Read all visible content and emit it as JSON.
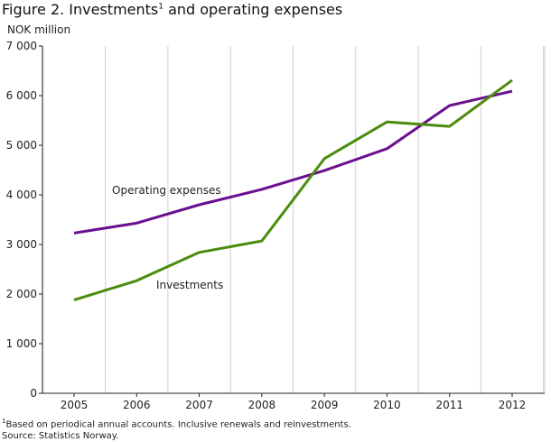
{
  "title_pre": "Figure 2. Investments",
  "title_sup": "1",
  "title_post": " and operating expenses",
  "footnote_mark": "1",
  "footnote": "Based on periodical annual accounts. Inclusive renewals and reinvestments.",
  "source": "Source: Statistics Norway.",
  "chart_data": {
    "type": "line",
    "ylabel": "NOK million",
    "x": [
      2005,
      2006,
      2007,
      2008,
      2009,
      2010,
      2011,
      2012
    ],
    "ylim": [
      0,
      7000
    ],
    "yticks": [
      0,
      1000,
      2000,
      3000,
      4000,
      5000,
      6000,
      7000
    ],
    "ytick_labels": [
      "0",
      "1 000",
      "2 000",
      "3 000",
      "4 000",
      "5 000",
      "6 000",
      "7 000"
    ],
    "grid": "vertical",
    "series": [
      {
        "name": "Operating expenses",
        "color": "#6a0f8e",
        "values": [
          3230,
          3430,
          3800,
          4110,
          4490,
          4930,
          5800,
          6090
        ]
      },
      {
        "name": "Investments",
        "color": "#4a8c0c",
        "values": [
          1880,
          2270,
          2840,
          3070,
          4730,
          5470,
          5380,
          6310
        ]
      }
    ]
  }
}
